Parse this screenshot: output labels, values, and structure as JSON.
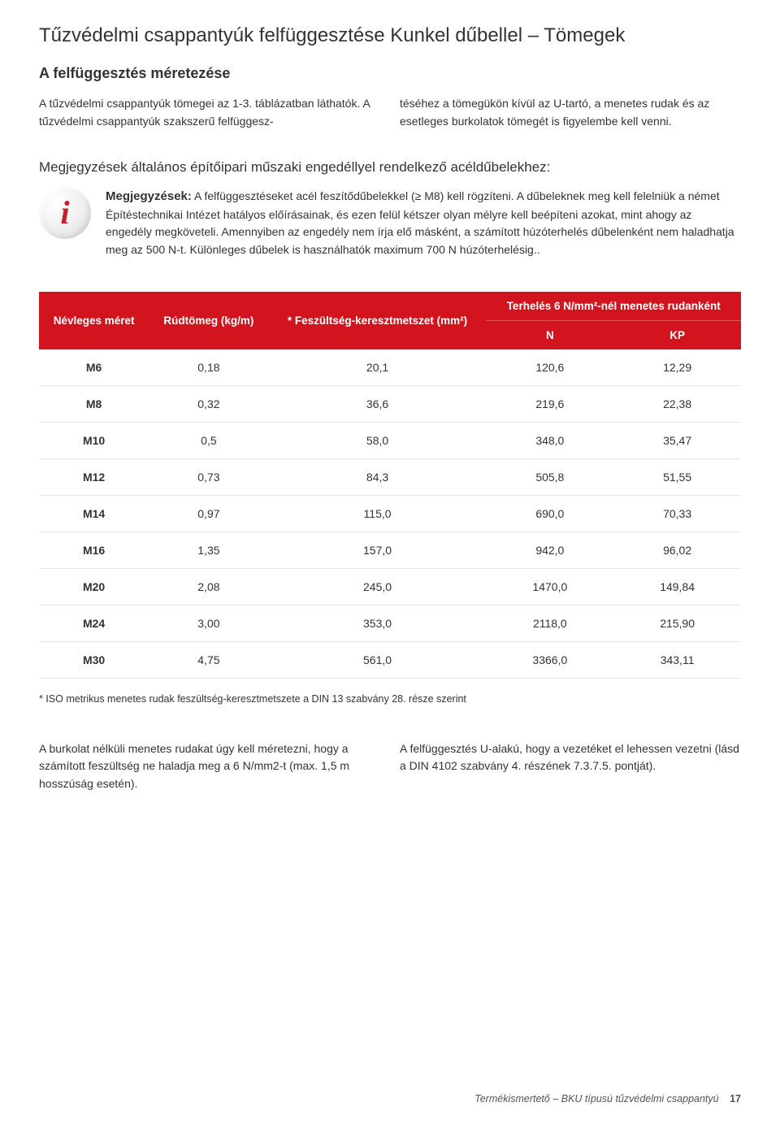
{
  "title": "Tűzvédelmi csappantyúk felfüggesztése Kunkel dűbellel – Tömegek",
  "subtitle": "A felfüggesztés méretezése",
  "intro": {
    "left": "A tűzvédelmi csappantyúk tömegei az 1-3. táblázatban láthatók. A tűzvédelmi csappantyúk szakszerű felfüggesz-",
    "right": "téséhez a tömegükön kívül az U-tartó, a menetes rudak és az esetleges burkolatok tömegét is figyelembe kell venni."
  },
  "notes": {
    "heading": "Megjegyzések általános építőipari műszaki engedéllyel rendelkező acéldűbelekhez:",
    "icon_letter": "i",
    "lead": "Megjegyzések:",
    "body": "A felfüggesztéseket acél feszítődűbelekkel (≥ M8) kell rögzíteni. A dűbeleknek meg kell felelniük a német Építéstechnikai Intézet hatályos előírásainak, és ezen felül kétszer olyan mélyre kell beépíteni azokat, mint ahogy az engedély megköveteli. Amennyiben az engedély nem írja elő másként, a számított húzóterhelés dűbelenként nem haladhatja meg az 500 N-t. Különleges dűbelek is használhatók maximum 700 N húzóterhelésig.."
  },
  "table": {
    "header": {
      "col1": "Névleges méret",
      "col2": "Rúdtömeg (kg/m)",
      "col3": "* Feszültség-keresztmetszet (mm²)",
      "col4_top": "Terhelés 6 N/mm²-nél menetes rudanként",
      "col4_N": "N",
      "col4_KP": "KP"
    },
    "rows": [
      {
        "c1": "M6",
        "c2": "0,18",
        "c3": "20,1",
        "c4": "120,6",
        "c5": "12,29"
      },
      {
        "c1": "M8",
        "c2": "0,32",
        "c3": "36,6",
        "c4": "219,6",
        "c5": "22,38"
      },
      {
        "c1": "M10",
        "c2": "0,5",
        "c3": "58,0",
        "c4": "348,0",
        "c5": "35,47"
      },
      {
        "c1": "M12",
        "c2": "0,73",
        "c3": "84,3",
        "c4": "505,8",
        "c5": "51,55"
      },
      {
        "c1": "M14",
        "c2": "0,97",
        "c3": "115,0",
        "c4": "690,0",
        "c5": "70,33"
      },
      {
        "c1": "M16",
        "c2": "1,35",
        "c3": "157,0",
        "c4": "942,0",
        "c5": "96,02"
      },
      {
        "c1": "M20",
        "c2": "2,08",
        "c3": "245,0",
        "c4": "1470,0",
        "c5": "149,84"
      },
      {
        "c1": "M24",
        "c2": "3,00",
        "c3": "353,0",
        "c4": "2118,0",
        "c5": "215,90"
      },
      {
        "c1": "M30",
        "c2": "4,75",
        "c3": "561,0",
        "c4": "3366,0",
        "c5": "343,11"
      }
    ]
  },
  "table_footnote": "* ISO metrikus menetes rudak feszültség-keresztmetszete a DIN 13 szabvány 28. része szerint",
  "bottom": {
    "left": "A burkolat nélküli menetes rudakat úgy kell méretezni, hogy a számított feszültség ne haladja meg a 6 N/mm2-t (max. 1,5 m hosszúság esetén).",
    "right": "A felfüggesztés U-alakú, hogy a vezetéket el lehessen vezetni (lásd a DIN 4102 szabvány 4. részének 7.3.7.5. pontját)."
  },
  "footer": {
    "text": "Termékismertető – BKU típusú tűzvédelmi csappantyú",
    "page": "17"
  }
}
